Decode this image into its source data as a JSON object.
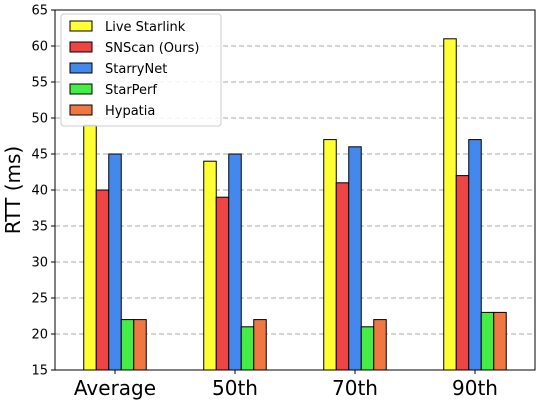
{
  "chart_data": {
    "type": "bar",
    "title": "",
    "xlabel": "",
    "ylabel": "RTT (ms)",
    "categories": [
      "Average",
      "50th",
      "70th",
      "90th"
    ],
    "ylim": [
      15,
      65
    ],
    "yticks": [
      15,
      20,
      25,
      30,
      35,
      40,
      45,
      50,
      55,
      60,
      65
    ],
    "grid": "horizontal dashed",
    "legend_position": "top-left",
    "series": [
      {
        "name": "Live Starlink",
        "color": "#ffff33",
        "values": [
          49,
          44,
          47,
          61
        ]
      },
      {
        "name": "SNScan (Ours)",
        "color": "#ee4444",
        "values": [
          40,
          39,
          41,
          42
        ]
      },
      {
        "name": "StarryNet",
        "color": "#4488ee",
        "values": [
          45,
          45,
          46,
          47
        ]
      },
      {
        "name": "StarPerf",
        "color": "#44ee44",
        "values": [
          22,
          21,
          21,
          23
        ]
      },
      {
        "name": "Hypatia",
        "color": "#ee7744",
        "values": [
          22,
          22,
          22,
          23
        ]
      }
    ]
  }
}
